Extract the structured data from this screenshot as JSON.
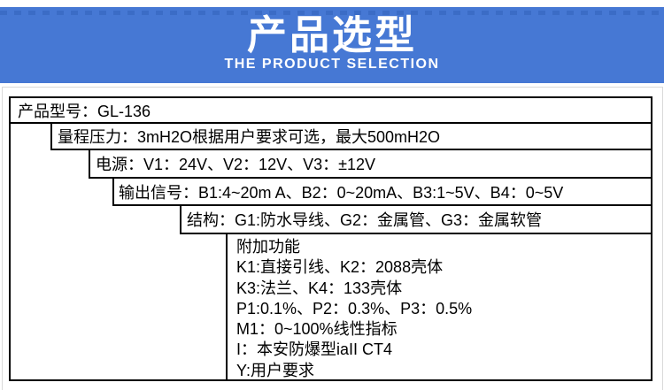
{
  "banner": {
    "title": "产品选型",
    "subtitle": "THE PRODUCT SELECTION",
    "bg_color": "#4678d4",
    "dash_color": "#3b6cc6",
    "text_color": "#ffffff"
  },
  "table": {
    "border_color": "#000000",
    "rows": [
      "产品型号：GL-136",
      "量程压力：3mH2O根据用户要求可选，最大500mH2O",
      "电源：V1：24V、V2：12V、V3：±12V",
      "输出信号：B1:4~20m A、B2：0~20mA、B3:1~5V、B4：0~5V",
      "结构：G1:防水导线、G2：金属管、G3：金属软管"
    ],
    "additional": {
      "lines": [
        "附加功能",
        "K1:直接引线、K2：2088壳体",
        "K3:法兰、K4：133壳体",
        "P1:0.1%、P2：0.3%、P3：0.5%",
        "M1：0~100%线性指标",
        "I：本安防爆型iaII CT4",
        "Y:用户要求"
      ]
    }
  }
}
